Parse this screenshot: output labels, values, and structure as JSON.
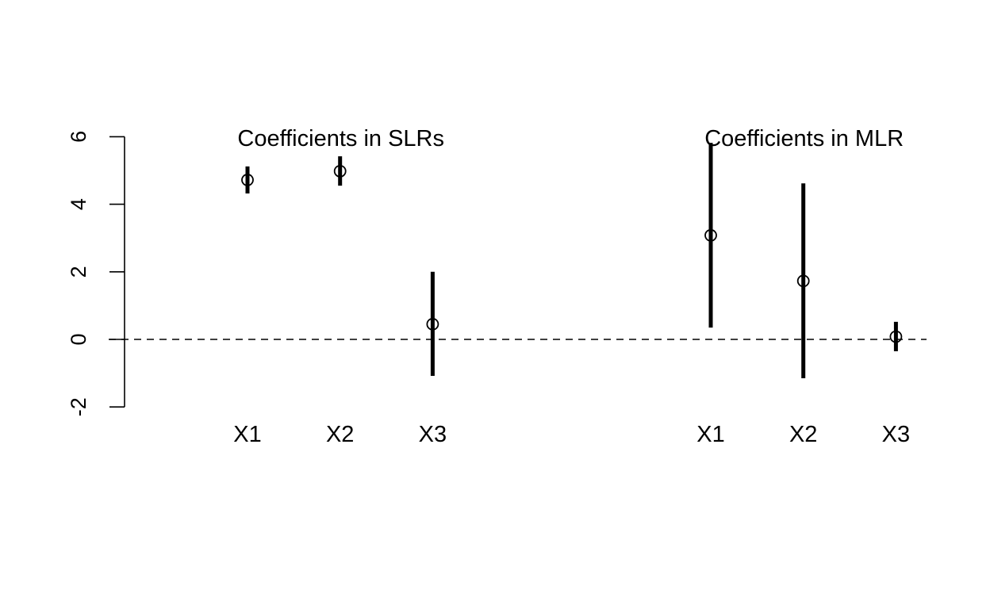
{
  "chart_data": {
    "type": "scatter",
    "title": "",
    "xlabel": "",
    "ylabel": "",
    "ylim": [
      -2,
      6
    ],
    "yticks": [
      -2,
      0,
      2,
      4,
      6
    ],
    "reference_line": {
      "y": 0,
      "style": "dashed"
    },
    "error_bars": true,
    "groups": [
      {
        "label": "Coefficients in SLRs",
        "points": [
          {
            "category": "X1",
            "estimate": 4.72,
            "lower": 4.32,
            "upper": 5.12
          },
          {
            "category": "X2",
            "estimate": 4.98,
            "lower": 4.55,
            "upper": 5.42
          },
          {
            "category": "X3",
            "estimate": 0.45,
            "lower": -1.08,
            "upper": 2.0
          }
        ]
      },
      {
        "label": "Coefficients in MLR",
        "points": [
          {
            "category": "X1",
            "estimate": 3.08,
            "lower": 0.35,
            "upper": 5.82
          },
          {
            "category": "X2",
            "estimate": 1.73,
            "lower": -1.15,
            "upper": 4.62
          },
          {
            "category": "X3",
            "estimate": 0.08,
            "lower": -0.35,
            "upper": 0.52
          }
        ]
      }
    ]
  }
}
